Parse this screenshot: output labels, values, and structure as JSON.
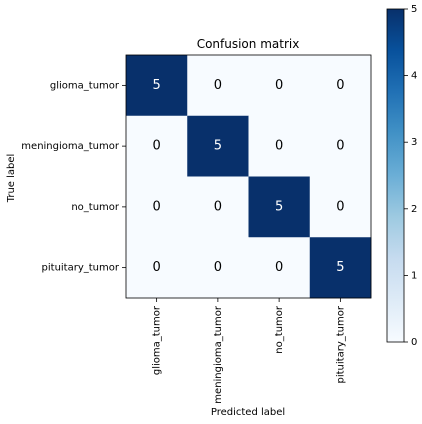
{
  "chart_data": {
    "type": "heatmap",
    "title": "Confusion matrix",
    "xlabel": "Predicted label",
    "ylabel": "True label",
    "x_categories": [
      "glioma_tumor",
      "meningioma_tumor",
      "no_tumor",
      "pituitary_tumor"
    ],
    "y_categories": [
      "glioma_tumor",
      "meningioma_tumor",
      "no_tumor",
      "pituitary_tumor"
    ],
    "matrix": [
      [
        5,
        0,
        0,
        0
      ],
      [
        0,
        5,
        0,
        0
      ],
      [
        0,
        0,
        5,
        0
      ],
      [
        0,
        0,
        0,
        5
      ]
    ],
    "colormap": "Blues",
    "color_min_hex": "#f7fbff",
    "color_max_hex": "#08306b",
    "value_range": [
      0,
      5
    ],
    "colorbar_ticks": [
      "0",
      "1",
      "2",
      "3",
      "4",
      "5"
    ]
  }
}
